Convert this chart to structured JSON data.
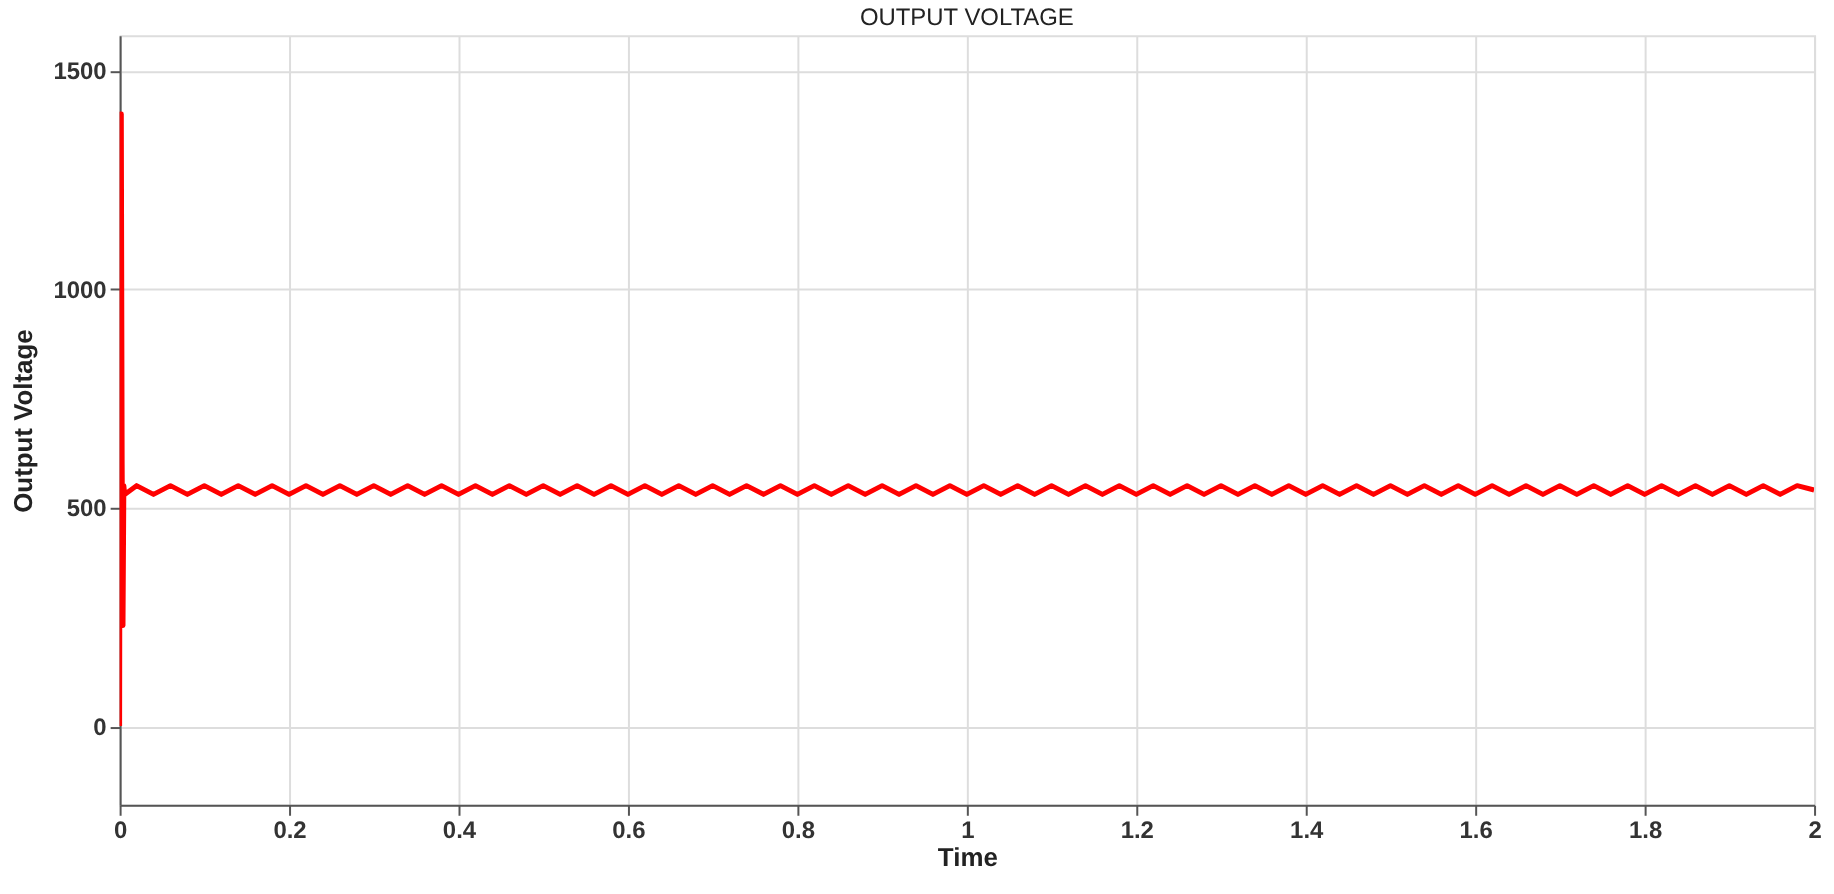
{
  "chart_data": {
    "type": "line",
    "title": "OUTPUT VOLTAGE",
    "xlabel": "Time",
    "ylabel": "Output Voltage",
    "x": [
      0,
      0.001,
      0.002,
      0.003,
      0.004,
      0.005,
      0.006,
      0.02,
      0.04,
      0.06,
      0.08,
      0.1,
      0.12,
      0.14,
      0.16,
      0.18,
      0.2,
      0.22,
      0.24,
      0.26,
      0.28,
      0.3,
      0.32,
      0.34,
      0.36,
      0.38,
      0.4,
      0.42,
      0.44,
      0.46,
      0.48,
      0.5,
      0.52,
      0.54,
      0.56,
      0.58,
      0.6,
      0.62,
      0.64,
      0.66,
      0.68,
      0.7,
      0.72,
      0.74,
      0.76,
      0.78,
      0.8,
      0.82,
      0.84,
      0.86,
      0.88,
      0.9,
      0.92,
      0.94,
      0.96,
      0.98,
      1.0,
      1.02,
      1.04,
      1.06,
      1.08,
      1.1,
      1.12,
      1.14,
      1.16,
      1.18,
      1.2,
      1.22,
      1.24,
      1.26,
      1.28,
      1.3,
      1.32,
      1.34,
      1.36,
      1.38,
      1.4,
      1.42,
      1.44,
      1.46,
      1.48,
      1.5,
      1.52,
      1.54,
      1.56,
      1.58,
      1.6,
      1.62,
      1.64,
      1.66,
      1.68,
      1.7,
      1.72,
      1.74,
      1.76,
      1.78,
      1.8,
      1.82,
      1.84,
      1.86,
      1.88,
      1.9,
      1.92,
      1.94,
      1.96,
      1.98,
      2.0
    ],
    "series": [
      {
        "color": "#ff0000",
        "values": [
          0,
          1400,
          1400,
          600,
          230,
          550,
          530,
          550,
          530,
          550,
          530,
          550,
          530,
          550,
          530,
          550,
          530,
          550,
          530,
          550,
          530,
          550,
          530,
          550,
          530,
          550,
          530,
          550,
          530,
          550,
          530,
          550,
          530,
          550,
          530,
          550,
          530,
          550,
          530,
          550,
          530,
          550,
          530,
          550,
          530,
          550,
          530,
          550,
          530,
          550,
          530,
          550,
          530,
          550,
          530,
          550,
          530,
          550,
          530,
          550,
          530,
          550,
          530,
          550,
          530,
          550,
          530,
          550,
          530,
          550,
          530,
          550,
          530,
          550,
          530,
          550,
          530,
          550,
          530,
          550,
          530,
          550,
          530,
          550,
          530,
          550,
          530,
          550,
          530,
          550,
          530,
          550,
          530,
          550,
          530,
          550,
          530,
          550,
          530,
          550,
          530,
          550,
          530,
          550,
          530,
          550,
          540
        ]
      }
    ],
    "xlim": [
      0,
      2
    ],
    "xticks": [
      0,
      0.2,
      0.4,
      0.6,
      0.8,
      1,
      1.2,
      1.4,
      1.6,
      1.8,
      2
    ],
    "ylim": [
      -180,
      1580
    ],
    "yticks": [
      0,
      500,
      1000,
      1500
    ],
    "grid": true,
    "marker": "none",
    "line_style": "solid"
  }
}
